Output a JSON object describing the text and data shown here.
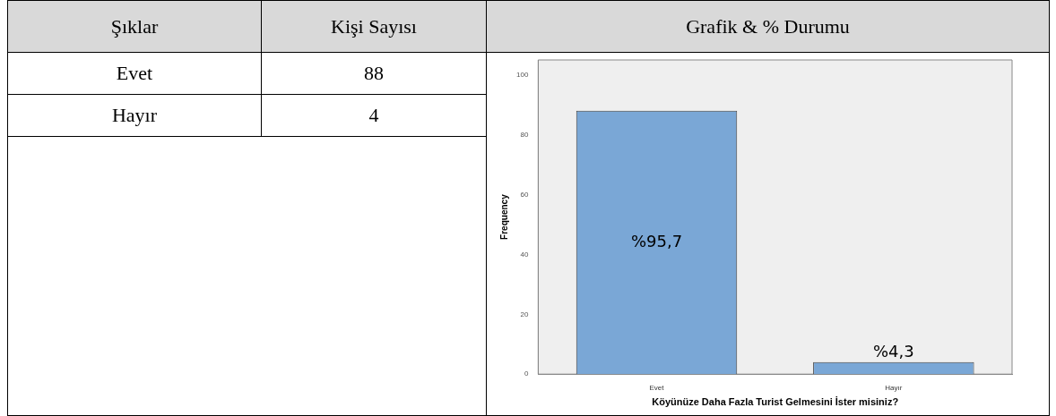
{
  "chart_data": {
    "type": "bar",
    "title": "Grafik & % Durumu",
    "annotations": [
      "Şıklar",
      "Kişi Sayısı",
      "88",
      "4",
      "%95,7",
      "%4,3"
    ],
    "categories": [
      "Evet",
      "Hayır"
    ],
    "values": [
      88,
      4
    ],
    "color": "#7aa7d6",
    "xlabel": "Köyünüze Daha Fazla Turist Gelmesini İster misiniz?",
    "ylabel": "Frequency",
    "ylim": [
      0,
      105
    ],
    "yticks": [
      0,
      20,
      40,
      60,
      80,
      100
    ],
    "grid": false,
    "legend": false
  }
}
